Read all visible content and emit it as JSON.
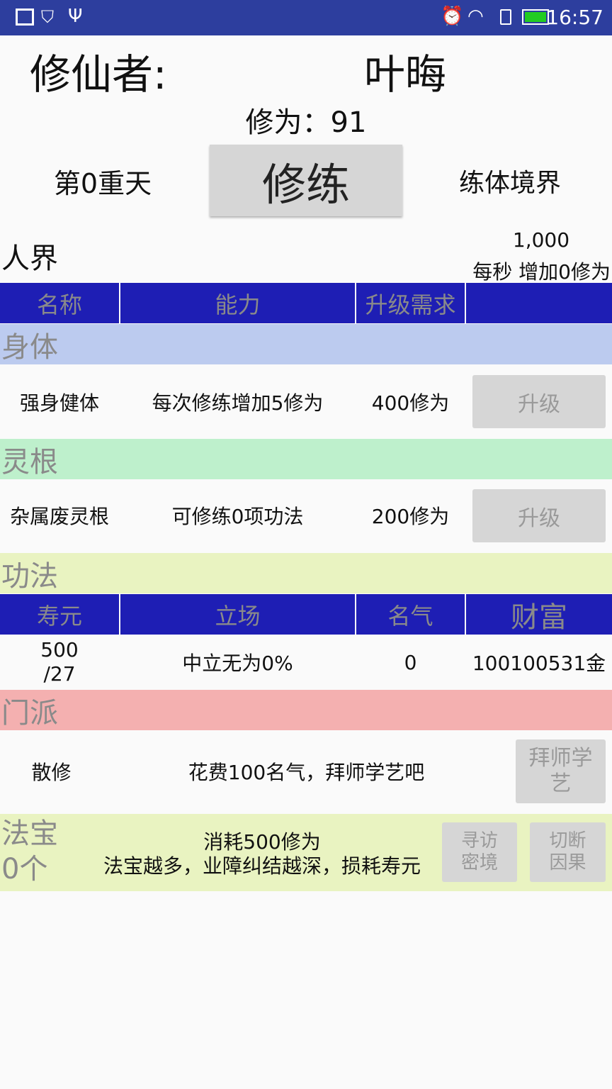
{
  "status_bar": {
    "time": "16:57",
    "icons": [
      "image-icon",
      "shield-icon",
      "usb-icon",
      "alarm-icon",
      "wifi-icon",
      "sim-icon",
      "battery-icon"
    ],
    "battery_color": "#22cc22"
  },
  "player": {
    "label": "修仙者:",
    "name": "叶晦",
    "cultivation": "修为：91"
  },
  "stage": {
    "level": "第0重天",
    "train_button": "修练",
    "realm": "练体境界"
  },
  "world": {
    "name": "人界",
    "amount": "1,000",
    "rate": "每秒 增加0修为"
  },
  "table1": {
    "headers": [
      "名称",
      "能力",
      "升级需求",
      ""
    ]
  },
  "sections": {
    "body": "身体",
    "root": "灵根",
    "skill": "功法",
    "sect": "门派",
    "treasure_line1": "法宝",
    "treasure_line2": "0个"
  },
  "rows": [
    {
      "name": "强身健体",
      "ability": "每次修练增加5修为",
      "cost": "400修为",
      "button": "升级"
    },
    {
      "name": "杂属废灵根",
      "ability": "可修练0项功法",
      "cost": "200修为",
      "button": "升级"
    }
  ],
  "table2": {
    "headers": [
      "寿元",
      "立场",
      "名气",
      "财富"
    ],
    "values": [
      "500\n/27",
      "中立无为0%",
      "0",
      "100100531金"
    ]
  },
  "sect": {
    "name": "散修",
    "desc": "花费100名气，拜师学艺吧",
    "button": "拜师学艺"
  },
  "treasure": {
    "cost": "消耗500修为",
    "desc": "法宝越多，业障纠结越深，损耗寿元",
    "search_button": "寻访密境",
    "cut_button": "切断因果"
  },
  "colors": {
    "header": "#1e1eb4",
    "body": "#bccbef",
    "root": "#bef0cc",
    "skill": "#e9f3c1",
    "sect": "#f4b0b0"
  }
}
